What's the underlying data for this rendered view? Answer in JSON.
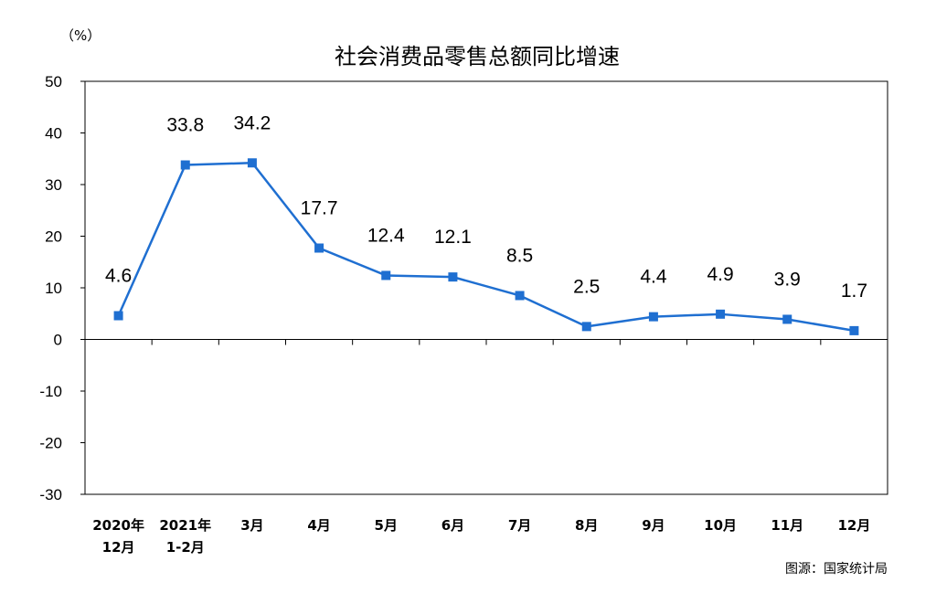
{
  "chart_data": {
    "type": "line",
    "title": "社会消费品零售总额同比增速",
    "unit_label": "（%）",
    "categories": [
      [
        "2020年",
        "12月"
      ],
      [
        "2021年",
        "1-2月"
      ],
      [
        "3月"
      ],
      [
        "4月"
      ],
      [
        "5月"
      ],
      [
        "6月"
      ],
      [
        "7月"
      ],
      [
        "8月"
      ],
      [
        "9月"
      ],
      [
        "10月"
      ],
      [
        "11月"
      ],
      [
        "12月"
      ]
    ],
    "values": [
      4.6,
      33.8,
      34.2,
      17.7,
      12.4,
      12.1,
      8.5,
      2.5,
      4.4,
      4.9,
      3.9,
      1.7
    ],
    "value_labels": [
      "4.6",
      "33.8",
      "34.2",
      "17.7",
      "12.4",
      "12.1",
      "8.5",
      "2.5",
      "4.4",
      "4.9",
      "3.9",
      "1.7"
    ],
    "yticks": [
      50,
      40,
      30,
      20,
      10,
      0,
      -10,
      -20,
      -30
    ],
    "ylim": [
      -30,
      50
    ],
    "grid": false,
    "line_color": "#1f6fd1",
    "source": "图源：国家统计局"
  }
}
